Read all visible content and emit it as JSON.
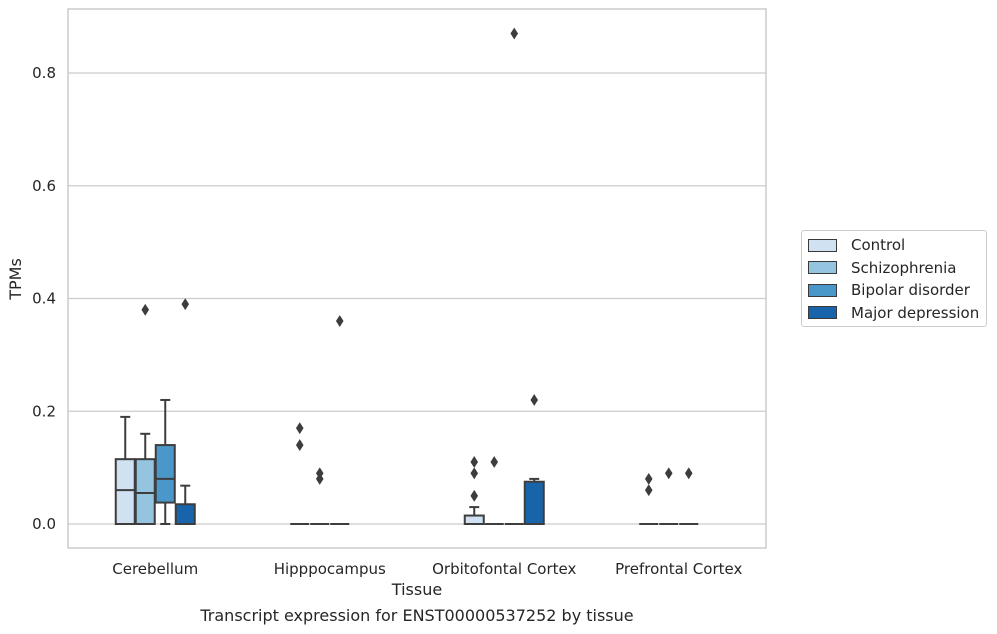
{
  "chart_data": {
    "type": "box",
    "caption": "Transcript expression for ENST00000537252 by tissue",
    "xlabel": "Tissue",
    "ylabel": "TPMs",
    "ylim": [
      -0.043,
      0.915
    ],
    "yticks": [
      "0.0",
      "0.2",
      "0.4",
      "0.6",
      "0.8"
    ],
    "ytick_values": [
      0.0,
      0.2,
      0.4,
      0.6,
      0.8
    ],
    "grid": "horizontal",
    "legend_position": "right",
    "categories": [
      "Cerebellum",
      "Hipppocampus",
      "Orbitofontal Cortex",
      "Prefrontal Cortex"
    ],
    "series": [
      {
        "name": "Control",
        "color": "#d0e1f2",
        "boxes": [
          {
            "whislo": 0.0,
            "q1": 0.0,
            "med": 0.06,
            "q3": 0.115,
            "whishi": 0.19,
            "fliers": []
          },
          {
            "whislo": 0.0,
            "q1": 0.0,
            "med": 0.0,
            "q3": 0.0,
            "whishi": 0.0,
            "fliers": [
              0.17,
              0.14
            ]
          },
          {
            "whislo": 0.0,
            "q1": 0.0,
            "med": 0.0,
            "q3": 0.015,
            "whishi": 0.03,
            "fliers": [
              0.11,
              0.09,
              0.05
            ]
          },
          {
            "whislo": 0.0,
            "q1": 0.0,
            "med": 0.0,
            "q3": 0.0,
            "whishi": 0.0,
            "fliers": [
              0.08,
              0.06
            ]
          }
        ]
      },
      {
        "name": "Schizophrenia",
        "color": "#94c4df",
        "boxes": [
          {
            "whislo": 0.0,
            "q1": 0.0,
            "med": 0.055,
            "q3": 0.115,
            "whishi": 0.16,
            "fliers": [
              0.38
            ]
          },
          {
            "whislo": 0.0,
            "q1": 0.0,
            "med": 0.0,
            "q3": 0.0,
            "whishi": 0.0,
            "fliers": [
              0.09,
              0.08
            ]
          },
          {
            "whislo": 0.0,
            "q1": 0.0,
            "med": 0.0,
            "q3": 0.0,
            "whishi": 0.0,
            "fliers": [
              0.11
            ]
          },
          {
            "whislo": 0.0,
            "q1": 0.0,
            "med": 0.0,
            "q3": 0.0,
            "whishi": 0.0,
            "fliers": [
              0.09
            ]
          }
        ]
      },
      {
        "name": "Bipolar disorder",
        "color": "#4a98c9",
        "boxes": [
          {
            "whislo": 0.0,
            "q1": 0.038,
            "med": 0.08,
            "q3": 0.14,
            "whishi": 0.22,
            "fliers": []
          },
          {
            "whislo": 0.0,
            "q1": 0.0,
            "med": 0.0,
            "q3": 0.0,
            "whishi": 0.0,
            "fliers": [
              0.36
            ]
          },
          {
            "whislo": 0.0,
            "q1": 0.0,
            "med": 0.0,
            "q3": 0.0,
            "whishi": 0.0,
            "fliers": [
              0.87
            ]
          },
          {
            "whislo": 0.0,
            "q1": 0.0,
            "med": 0.0,
            "q3": 0.0,
            "whishi": 0.0,
            "fliers": [
              0.09
            ]
          }
        ]
      },
      {
        "name": "Major depression",
        "color": "#1764ab",
        "boxes": [
          {
            "whislo": 0.0,
            "q1": 0.0,
            "med": 0.0,
            "q3": 0.035,
            "whishi": 0.068,
            "fliers": [
              0.39
            ]
          },
          null,
          {
            "whislo": 0.0,
            "q1": 0.0,
            "med": 0.0,
            "q3": 0.075,
            "whishi": 0.08,
            "fliers": [
              0.22
            ]
          },
          null
        ]
      }
    ]
  }
}
